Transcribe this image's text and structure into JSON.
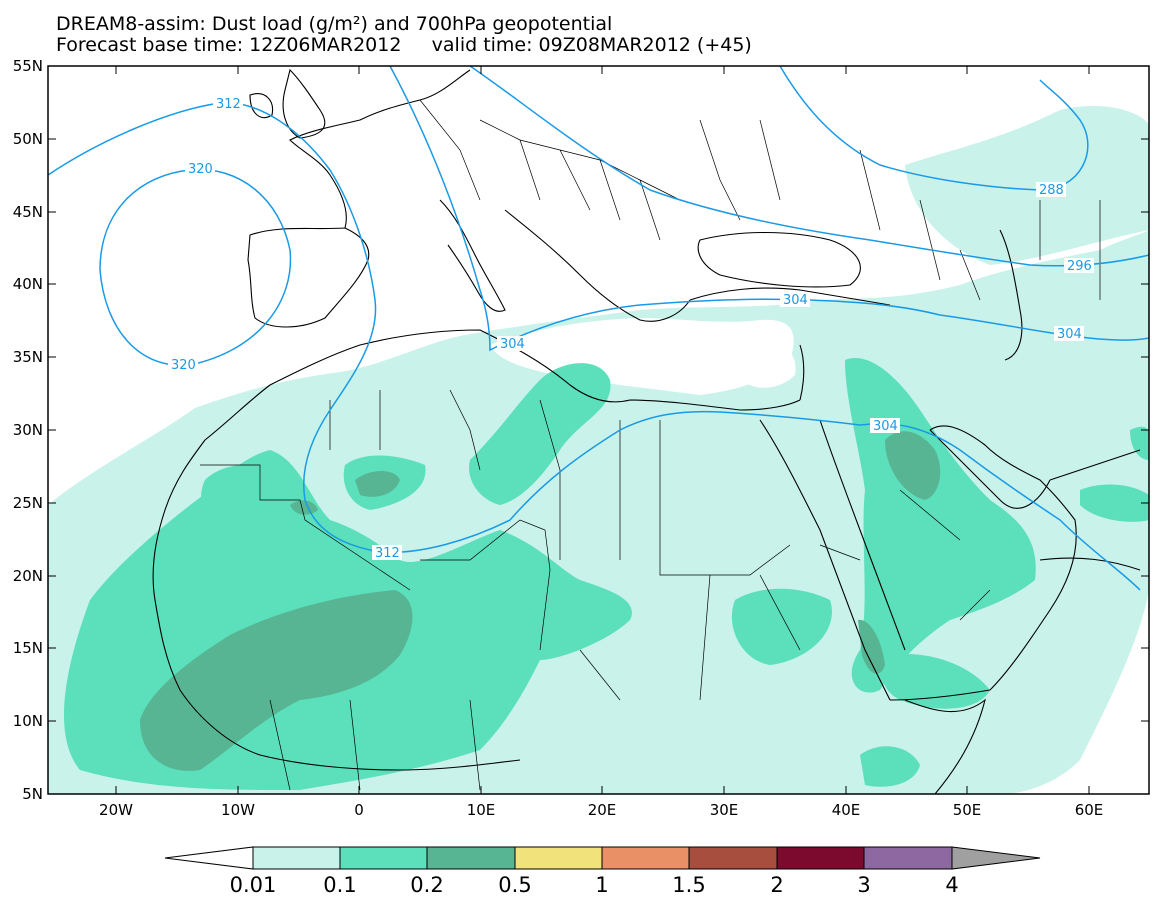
{
  "title": {
    "line1": "DREAM8-assim: Dust load (g/m²) and 700hPa geopotential",
    "line2": "Forecast base time: 12Z06MAR2012     valid time: 09Z08MAR2012 (+45)"
  },
  "axes": {
    "lat_labels": [
      "55N",
      "50N",
      "45N",
      "40N",
      "35N",
      "30N",
      "25N",
      "20N",
      "15N",
      "10N",
      "5N"
    ],
    "lon_labels": [
      "20W",
      "10W",
      "0",
      "10E",
      "20E",
      "30E",
      "40E",
      "50E",
      "60E"
    ]
  },
  "colorbar": {
    "labels": [
      "0.01",
      "0.1",
      "0.2",
      "0.5",
      "1",
      "1.5",
      "2",
      "3",
      "4"
    ],
    "colors": [
      "#c8f2ea",
      "#5be0bb",
      "#58b594",
      "#f2e27c",
      "#e99066",
      "#a84e3e",
      "#7c0a2f",
      "#8e68a0"
    ]
  },
  "contours": {
    "labels": [
      "304",
      "312",
      "320",
      "320",
      "304",
      "312",
      "304",
      "288",
      "296",
      "304"
    ],
    "color": "#1a9ae6"
  },
  "map": {
    "background": "#ffffff",
    "shading_colors": [
      "#c8f2ea",
      "#5be0bb",
      "#58b594"
    ]
  }
}
